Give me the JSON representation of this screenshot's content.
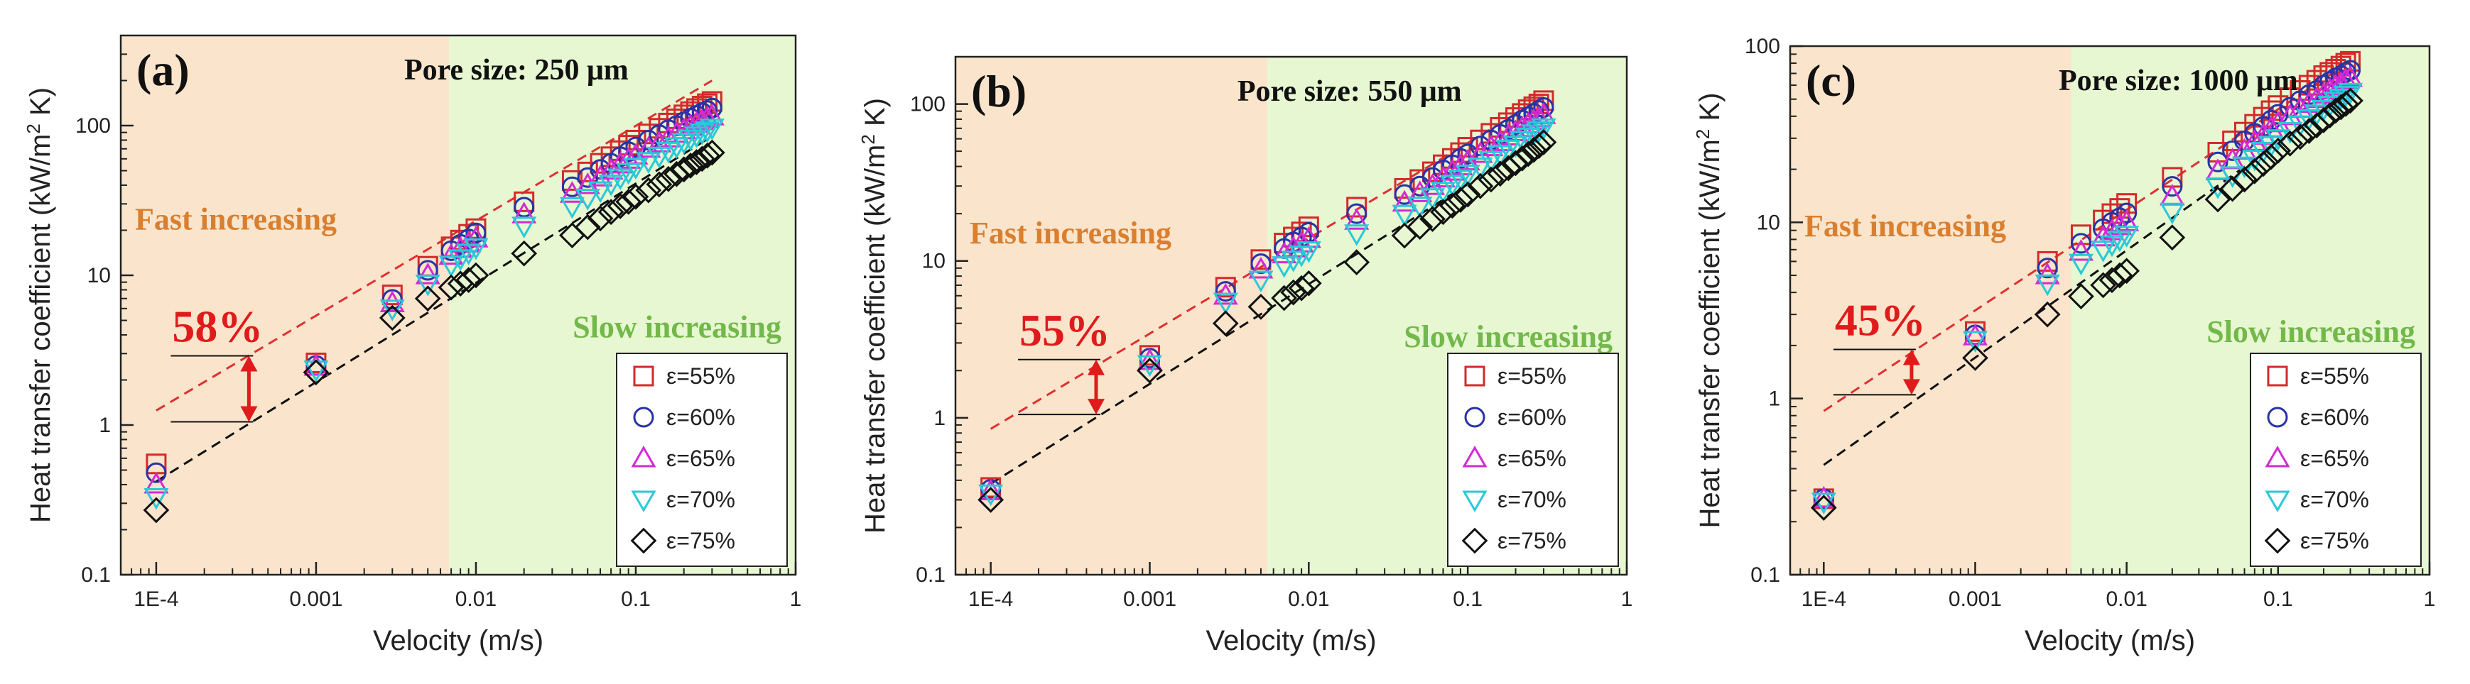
{
  "figure": {
    "background": "#ffffff",
    "colors": {
      "fast_region": "#fae5cc",
      "slow_region": "#e6f7d2",
      "fast_text": "#d97f2f",
      "slow_text": "#73b84a",
      "percent_text": "#e01b1b",
      "arrow": "#e01b1b",
      "upper_fit_line": "#e03030",
      "lower_fit_line": "#111111"
    }
  },
  "chart_data": [
    {
      "type": "scatter",
      "panel_label": "(a)",
      "title": "Pore size: 250 μm",
      "xlabel": "Velocity (m/s)",
      "ylabel_main": "Heat transfer coefficient (kW/m",
      "ylabel_sup": "2",
      "ylabel_end": " K)",
      "x_scale": "log",
      "y_scale": "log",
      "xlim": [
        6e-05,
        1
      ],
      "ylim": [
        0.1,
        400
      ],
      "x_ticks": [
        0.0001,
        0.001,
        0.01,
        0.1,
        1
      ],
      "x_tick_labels": [
        "1E-4",
        "0.001",
        "0.01",
        "0.1",
        "1"
      ],
      "y_ticks": [
        0.1,
        1,
        10,
        100
      ],
      "y_tick_labels": [
        "0.1",
        "1",
        "10",
        "100"
      ],
      "region_split_x": 0.0068,
      "fast_label": "Fast increasing",
      "slow_label": "Slow increasing",
      "percent_label": "58%",
      "arrow": {
        "x": 0.00038,
        "y_top": 2.9,
        "y_bottom": 1.05
      },
      "fit_lines": [
        {
          "name": "upper",
          "points": [
            [
              0.0001,
              1.25
            ],
            [
              0.3,
              200
            ]
          ]
        },
        {
          "name": "lower",
          "points": [
            [
              0.0001,
              0.42
            ],
            [
              0.3,
              85
            ]
          ]
        }
      ],
      "legend_entries": [
        "ε=55%",
        "ε=60%",
        "ε=65%",
        "ε=70%",
        "ε=75%"
      ],
      "x": [
        0.0001,
        0.001,
        0.003,
        0.005,
        0.007,
        0.008,
        0.009,
        0.01,
        0.02,
        0.04,
        0.05,
        0.06,
        0.07,
        0.08,
        0.09,
        0.1,
        0.12,
        0.14,
        0.16,
        0.18,
        0.2,
        0.22,
        0.24,
        0.26,
        0.28,
        0.3
      ],
      "series": [
        {
          "name": "ε=55%",
          "marker": "square",
          "color": "#d42a2a",
          "values": [
            0.55,
            2.6,
            7.4,
            11.5,
            15.5,
            17.2,
            18.8,
            20.5,
            31,
            43,
            49,
            56,
            62,
            68,
            74,
            80,
            88,
            96,
            104,
            111,
            118,
            124,
            130,
            135,
            140,
            145
          ]
        },
        {
          "name": "ε=60%",
          "marker": "circle",
          "color": "#2a32a8",
          "values": [
            0.48,
            2.5,
            6.9,
            10.8,
            14.6,
            16.1,
            17.5,
            19.2,
            28.5,
            39,
            45,
            51,
            56,
            62,
            67,
            72,
            80,
            87,
            94,
            100,
            106,
            112,
            117,
            122,
            126,
            131
          ]
        },
        {
          "name": "ε=65%",
          "marker": "triangle-up",
          "color": "#d42ad4",
          "values": [
            0.4,
            2.45,
            6.5,
            10,
            13.5,
            15,
            16.3,
            17.6,
            25.5,
            35,
            40,
            45,
            50,
            55,
            59,
            63,
            70,
            76,
            82,
            88,
            93,
            98,
            103,
            107,
            111,
            115
          ]
        },
        {
          "name": "ε=70%",
          "marker": "triangle-down",
          "color": "#2ac8d8",
          "values": [
            0.33,
            2.35,
            6.0,
            8.8,
            11.8,
            13,
            14.2,
            15.4,
            21.5,
            29,
            33,
            37,
            41,
            45,
            49,
            53,
            58,
            63,
            68,
            73,
            78,
            82,
            86,
            90,
            93,
            97
          ]
        },
        {
          "name": "ε=75%",
          "marker": "diamond",
          "color": "#111111",
          "values": [
            0.27,
            2.25,
            5.2,
            7.0,
            8.3,
            8.8,
            9.3,
            10.0,
            14,
            18.5,
            21,
            24,
            26.5,
            29,
            31,
            33.5,
            37,
            40.5,
            44,
            47.5,
            51,
            54,
            57,
            60,
            63,
            66
          ]
        }
      ]
    },
    {
      "type": "scatter",
      "panel_label": "(b)",
      "title": "Pore size: 550 μm",
      "xlabel": "Velocity (m/s)",
      "ylabel_main": "Heat transfer coefficient (kW/m",
      "ylabel_sup": "2",
      "ylabel_end": " K)",
      "x_scale": "log",
      "y_scale": "log",
      "xlim": [
        6e-05,
        1
      ],
      "ylim": [
        0.1,
        200
      ],
      "x_ticks": [
        0.0001,
        0.001,
        0.01,
        0.1,
        1
      ],
      "x_tick_labels": [
        "1E-4",
        "0.001",
        "0.01",
        "0.1",
        "1"
      ],
      "y_ticks": [
        0.1,
        1,
        10,
        100
      ],
      "y_tick_labels": [
        "0.1",
        "1",
        "10",
        "100"
      ],
      "region_split_x": 0.0055,
      "fast_label": "Fast increasing",
      "slow_label": "Slow increasing",
      "percent_label": "55%",
      "arrow": {
        "x": 0.00046,
        "y_top": 2.35,
        "y_bottom": 1.05
      },
      "fit_lines": [
        {
          "name": "upper",
          "points": [
            [
              0.0001,
              0.85
            ],
            [
              0.3,
              110
            ]
          ]
        },
        {
          "name": "lower",
          "points": [
            [
              0.0001,
              0.38
            ],
            [
              0.3,
              62
            ]
          ]
        }
      ],
      "legend_entries": [
        "ε=55%",
        "ε=60%",
        "ε=65%",
        "ε=70%",
        "ε=75%"
      ],
      "x": [
        0.0001,
        0.001,
        0.003,
        0.005,
        0.007,
        0.008,
        0.009,
        0.01,
        0.02,
        0.04,
        0.05,
        0.06,
        0.07,
        0.08,
        0.09,
        0.1,
        0.12,
        0.14,
        0.16,
        0.18,
        0.2,
        0.22,
        0.24,
        0.26,
        0.28,
        0.3
      ],
      "series": [
        {
          "name": "ε=55%",
          "marker": "square",
          "color": "#d42a2a",
          "values": [
            0.36,
            2.5,
            6.8,
            10.2,
            13.0,
            14.2,
            15.3,
            16.5,
            22,
            29,
            33,
            37,
            41,
            45,
            49,
            53,
            59,
            65,
            71,
            76,
            82,
            87,
            92,
            96,
            100,
            105
          ]
        },
        {
          "name": "ε=60%",
          "marker": "circle",
          "color": "#2a32a8",
          "values": [
            0.35,
            2.4,
            6.4,
            9.6,
            12.0,
            13.2,
            14.2,
            15.2,
            20,
            26.5,
            30,
            34,
            38,
            41,
            45,
            48,
            54,
            59,
            64,
            69,
            74,
            79,
            83,
            87,
            91,
            95
          ]
        },
        {
          "name": "ε=65%",
          "marker": "triangle-up",
          "color": "#d42ad4",
          "values": [
            0.34,
            2.3,
            6.0,
            8.8,
            11.0,
            12.0,
            12.9,
            13.8,
            18,
            23.5,
            27,
            30,
            33.5,
            37,
            40,
            43,
            48,
            53,
            57,
            62,
            66,
            70,
            74,
            78,
            81,
            85
          ]
        },
        {
          "name": "ε=70%",
          "marker": "triangle-down",
          "color": "#2ac8d8",
          "values": [
            0.33,
            2.2,
            5.5,
            7.6,
            9.4,
            10.2,
            11.0,
            11.7,
            15,
            20,
            22.5,
            25.5,
            28,
            31,
            33.5,
            36,
            40,
            44,
            48,
            52,
            55,
            59,
            62,
            65,
            68,
            71
          ]
        },
        {
          "name": "ε=75%",
          "marker": "diamond",
          "color": "#111111",
          "values": [
            0.3,
            2.0,
            4.0,
            5.1,
            5.8,
            6.3,
            6.7,
            7.2,
            9.8,
            14.5,
            16.5,
            18.5,
            20.5,
            22.5,
            24.5,
            26.5,
            30,
            33,
            36,
            39,
            42,
            45,
            48,
            51,
            54,
            57
          ]
        }
      ]
    },
    {
      "type": "scatter",
      "panel_label": "(c)",
      "title": "Pore size: 1000 μm",
      "xlabel": "Velocity (m/s)",
      "ylabel_main": "Heat transfer coefficient (kW/m",
      "ylabel_sup": "2",
      "ylabel_end": " K)",
      "x_scale": "log",
      "y_scale": "log",
      "xlim": [
        6e-05,
        1
      ],
      "ylim": [
        0.1,
        100
      ],
      "x_ticks": [
        0.0001,
        0.001,
        0.01,
        0.1,
        1
      ],
      "x_tick_labels": [
        "1E-4",
        "0.001",
        "0.01",
        "0.1",
        "1"
      ],
      "y_ticks": [
        0.1,
        1,
        10,
        100
      ],
      "y_tick_labels": [
        "0.1",
        "1",
        "10",
        "100"
      ],
      "region_split_x": 0.0043,
      "fast_label": "Fast increasing",
      "slow_label": "Slow increasing",
      "percent_label": "45%",
      "arrow": {
        "x": 0.00038,
        "y_top": 1.9,
        "y_bottom": 1.05
      },
      "fit_lines": [
        {
          "name": "upper",
          "points": [
            [
              0.0001,
              0.85
            ],
            [
              0.3,
              82
            ]
          ]
        },
        {
          "name": "lower",
          "points": [
            [
              0.0001,
              0.42
            ],
            [
              0.3,
              55
            ]
          ]
        }
      ],
      "legend_entries": [
        "ε=55%",
        "ε=60%",
        "ε=65%",
        "ε=70%",
        "ε=75%"
      ],
      "x": [
        0.0001,
        0.001,
        0.003,
        0.005,
        0.007,
        0.008,
        0.009,
        0.01,
        0.02,
        0.04,
        0.05,
        0.06,
        0.07,
        0.08,
        0.09,
        0.1,
        0.12,
        0.14,
        0.16,
        0.18,
        0.2,
        0.22,
        0.24,
        0.26,
        0.28,
        0.3
      ],
      "series": [
        {
          "name": "ε=55%",
          "marker": "square",
          "color": "#d42a2a",
          "values": [
            0.27,
            2.4,
            6.0,
            8.5,
            10.3,
            11.2,
            12.0,
            12.8,
            18,
            25,
            29,
            32.5,
            36,
            39.5,
            43,
            46,
            51,
            56,
            60,
            64,
            68,
            71,
            74,
            77,
            80,
            82
          ]
        },
        {
          "name": "ε=60%",
          "marker": "circle",
          "color": "#2a32a8",
          "values": [
            0.27,
            2.3,
            5.5,
            7.6,
            9.2,
            10.0,
            10.6,
            11.3,
            16,
            22,
            25.5,
            29,
            32,
            35,
            38,
            41,
            45,
            49,
            53,
            56,
            60,
            63,
            66,
            68,
            71,
            73
          ]
        },
        {
          "name": "ε=65%",
          "marker": "triangle-up",
          "color": "#d42ad4",
          "values": [
            0.27,
            2.25,
            5.0,
            6.8,
            8.2,
            8.9,
            9.5,
            10.0,
            14,
            19.5,
            22.5,
            25.5,
            28.5,
            31,
            34,
            36.5,
            40,
            44,
            47,
            50,
            53,
            56,
            59,
            61,
            64,
            66
          ]
        },
        {
          "name": "ε=70%",
          "marker": "triangle-down",
          "color": "#2ac8d8",
          "values": [
            0.26,
            2.15,
            4.5,
            5.9,
            7.0,
            7.5,
            8.0,
            8.5,
            11.5,
            16,
            18.5,
            21,
            23,
            25.5,
            27.5,
            30,
            33,
            36,
            39,
            41.5,
            44,
            46.5,
            49,
            51,
            53,
            55
          ]
        },
        {
          "name": "ε=75%",
          "marker": "diamond",
          "color": "#111111",
          "values": [
            0.24,
            1.7,
            3.0,
            3.8,
            4.4,
            4.7,
            5.0,
            5.3,
            8.2,
            13.5,
            15.5,
            17.5,
            19.5,
            21.5,
            23.5,
            25.5,
            28,
            30.5,
            33,
            35.5,
            38,
            40.5,
            43,
            45,
            47,
            49
          ]
        }
      ]
    }
  ]
}
